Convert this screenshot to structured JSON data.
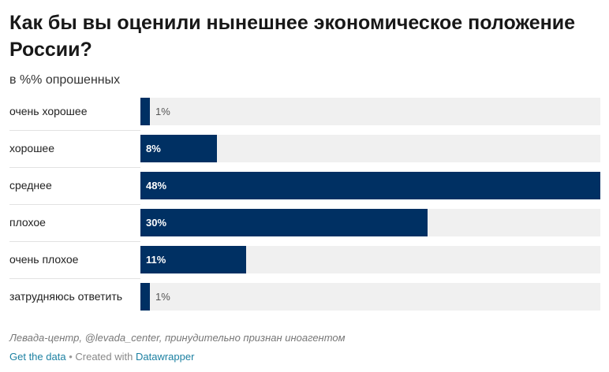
{
  "chart_data": {
    "type": "bar",
    "orientation": "horizontal",
    "title": "Как бы вы оценили нынешнее экономическое положение России?",
    "subtitle": "в %% опрошенных",
    "categories": [
      "очень хорошее",
      "хорошее",
      "среднее",
      "плохое",
      "очень плохое",
      "затрудняюсь ответить"
    ],
    "values": [
      1,
      8,
      48,
      30,
      11,
      1
    ],
    "value_labels": [
      "1%",
      "8%",
      "48%",
      "30%",
      "11%",
      "1%"
    ],
    "xlim": [
      0,
      48
    ],
    "grid": false,
    "bar_color": "#003063",
    "track_color": "#f0f0f0"
  },
  "source": "Левада-центр, @levada_center, принудительно признан иноагентом",
  "footer": {
    "get_data": "Get the data",
    "separator": "•",
    "created_with": "Created with",
    "tool": "Datawrapper"
  }
}
